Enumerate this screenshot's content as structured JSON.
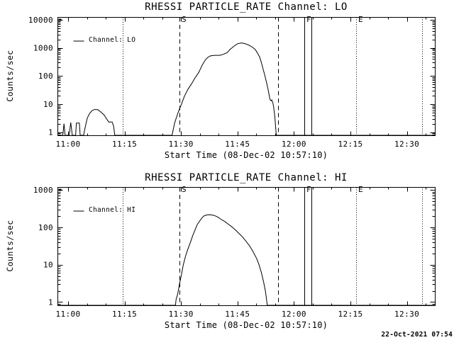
{
  "page": {
    "background": "#ffffff",
    "ink": "#000000"
  },
  "footer": {
    "generated_timestamp": "22-Oct-2021 07:54"
  },
  "chart_data": [
    {
      "type": "line",
      "title": "RHESSI PARTICLE_RATE Channel: LO",
      "xlabel": "Start Time (08-Dec-02 10:57:10)",
      "ylabel": "Counts/sec",
      "legend": {
        "label": "Channel: LO",
        "position": "top-left"
      },
      "x_axis": {
        "tick_labels": [
          "11:00",
          "11:15",
          "11:30",
          "11:45",
          "12:00",
          "12:15",
          "12:30"
        ],
        "tick_minutes": [
          0,
          15,
          30,
          45,
          60,
          75,
          90
        ],
        "minor_step_minutes": 5,
        "range_minutes": [
          -2.83,
          97.42
        ]
      },
      "y_axis": {
        "scale": "log",
        "tick_labels": [
          "1",
          "10",
          "100",
          "1000",
          "10000"
        ],
        "tick_values": [
          1,
          10,
          100,
          1000,
          10000
        ],
        "range": [
          0.77,
          12600
        ]
      },
      "events": [
        {
          "style": "dotted",
          "minutes": 14.56,
          "label": ""
        },
        {
          "style": "dashed",
          "minutes": 29.6,
          "label": "S"
        },
        {
          "style": "dashed",
          "minutes": 55.77,
          "label": ""
        },
        {
          "style": "solid",
          "minutes": 62.84,
          "label": "F"
        },
        {
          "style": "solid",
          "minutes": 64.72,
          "label": ""
        },
        {
          "style": "dotted",
          "minutes": 76.5,
          "label": "E"
        },
        {
          "style": "dotted",
          "minutes": 94.0,
          "label": ""
        }
      ],
      "series": [
        {
          "name": "Channel: LO",
          "points": [
            [
              -2.8,
              0
            ],
            [
              -1.4,
              0
            ],
            [
              -1.1,
              2
            ],
            [
              -0.8,
              0
            ],
            [
              0.3,
              0
            ],
            [
              0.7,
              2.2
            ],
            [
              1.1,
              0
            ],
            [
              2.0,
              0
            ],
            [
              2.2,
              2.1
            ],
            [
              3.0,
              2.1
            ],
            [
              3.2,
              0
            ],
            [
              4.1,
              0
            ],
            [
              4.6,
              1.6
            ],
            [
              5.1,
              3.2
            ],
            [
              5.7,
              4.6
            ],
            [
              6.4,
              5.9
            ],
            [
              7.0,
              6.4
            ],
            [
              7.9,
              6.3
            ],
            [
              8.7,
              5.2
            ],
            [
              9.6,
              4.0
            ],
            [
              10.2,
              3.0
            ],
            [
              10.8,
              2.3
            ],
            [
              11.7,
              2.3
            ],
            [
              12.1,
              1.6
            ],
            [
              12.4,
              0
            ],
            [
              27.6,
              0
            ],
            [
              27.9,
              1.2
            ],
            [
              28.3,
              2.1
            ],
            [
              28.7,
              3.1
            ],
            [
              29.3,
              5.3
            ],
            [
              30.1,
              10
            ],
            [
              30.9,
              19
            ],
            [
              31.8,
              33
            ],
            [
              32.8,
              53
            ],
            [
              33.7,
              85
            ],
            [
              34.7,
              134
            ],
            [
              35.6,
              240
            ],
            [
              36.5,
              380
            ],
            [
              37.2,
              470
            ],
            [
              37.8,
              520
            ],
            [
              39.0,
              545
            ],
            [
              40.3,
              545
            ],
            [
              41.2,
              590
            ],
            [
              42.2,
              670
            ],
            [
              43.1,
              900
            ],
            [
              44.1,
              1160
            ],
            [
              45.0,
              1400
            ],
            [
              46.0,
              1500
            ],
            [
              46.9,
              1430
            ],
            [
              47.8,
              1290
            ],
            [
              48.8,
              1100
            ],
            [
              49.7,
              880
            ],
            [
              50.3,
              660
            ],
            [
              50.9,
              470
            ],
            [
              51.3,
              310
            ],
            [
              51.7,
              196
            ],
            [
              52.2,
              112
            ],
            [
              52.7,
              59
            ],
            [
              53.1,
              34
            ],
            [
              53.4,
              21
            ],
            [
              53.6,
              15
            ],
            [
              53.9,
              13
            ],
            [
              54.1,
              14
            ],
            [
              54.4,
              11
            ],
            [
              54.6,
              7.6
            ],
            [
              54.9,
              3.6
            ],
            [
              55.1,
              1.7
            ],
            [
              55.3,
              0
            ],
            [
              97.4,
              0
            ]
          ]
        }
      ]
    },
    {
      "type": "line",
      "title": "RHESSI PARTICLE_RATE Channel: HI",
      "xlabel": "Start Time (08-Dec-02 10:57:10)",
      "ylabel": "Counts/sec",
      "legend": {
        "label": "Channel: HI",
        "position": "top-left"
      },
      "x_axis": {
        "tick_labels": [
          "11:00",
          "11:15",
          "11:30",
          "11:45",
          "12:00",
          "12:15",
          "12:30"
        ],
        "tick_minutes": [
          0,
          15,
          30,
          45,
          60,
          75,
          90
        ],
        "minor_step_minutes": 5,
        "range_minutes": [
          -2.83,
          97.42
        ]
      },
      "y_axis": {
        "scale": "log",
        "tick_labels": [
          "1",
          "10",
          "100",
          "1000"
        ],
        "tick_values": [
          1,
          10,
          100,
          1000
        ],
        "range": [
          0.82,
          1200
        ]
      },
      "events": [
        {
          "style": "dotted",
          "minutes": 14.56,
          "label": ""
        },
        {
          "style": "dashed",
          "minutes": 29.6,
          "label": "S"
        },
        {
          "style": "dashed",
          "minutes": 55.77,
          "label": ""
        },
        {
          "style": "solid",
          "minutes": 62.84,
          "label": "F"
        },
        {
          "style": "solid",
          "minutes": 64.72,
          "label": ""
        },
        {
          "style": "dotted",
          "minutes": 76.5,
          "label": "E"
        },
        {
          "style": "dotted",
          "minutes": 94.0,
          "label": ""
        }
      ],
      "series": [
        {
          "name": "Channel: HI",
          "points": [
            [
              -2.8,
              0
            ],
            [
              28.5,
              0
            ],
            [
              28.7,
              1.2
            ],
            [
              29.1,
              1.6
            ],
            [
              29.6,
              3.1
            ],
            [
              30.1,
              5.4
            ],
            [
              30.6,
              10
            ],
            [
              31.2,
              17
            ],
            [
              31.8,
              26
            ],
            [
              32.5,
              40
            ],
            [
              33.1,
              60
            ],
            [
              33.7,
              85
            ],
            [
              34.3,
              118
            ],
            [
              35.0,
              150
            ],
            [
              35.6,
              181
            ],
            [
              36.2,
              205
            ],
            [
              36.9,
              215
            ],
            [
              37.5,
              218
            ],
            [
              38.1,
              215
            ],
            [
              38.8,
              208
            ],
            [
              39.7,
              190
            ],
            [
              40.6,
              165
            ],
            [
              41.6,
              143
            ],
            [
              42.5,
              122
            ],
            [
              43.5,
              103
            ],
            [
              44.4,
              86
            ],
            [
              45.3,
              70
            ],
            [
              46.3,
              56
            ],
            [
              47.2,
              43
            ],
            [
              48.2,
              32
            ],
            [
              49.1,
              22.5
            ],
            [
              50.1,
              14.5
            ],
            [
              50.7,
              10
            ],
            [
              51.3,
              6.3
            ],
            [
              51.9,
              3.6
            ],
            [
              52.4,
              2.0
            ],
            [
              52.7,
              1.2
            ],
            [
              52.9,
              0
            ],
            [
              97.4,
              0
            ]
          ]
        }
      ]
    }
  ]
}
